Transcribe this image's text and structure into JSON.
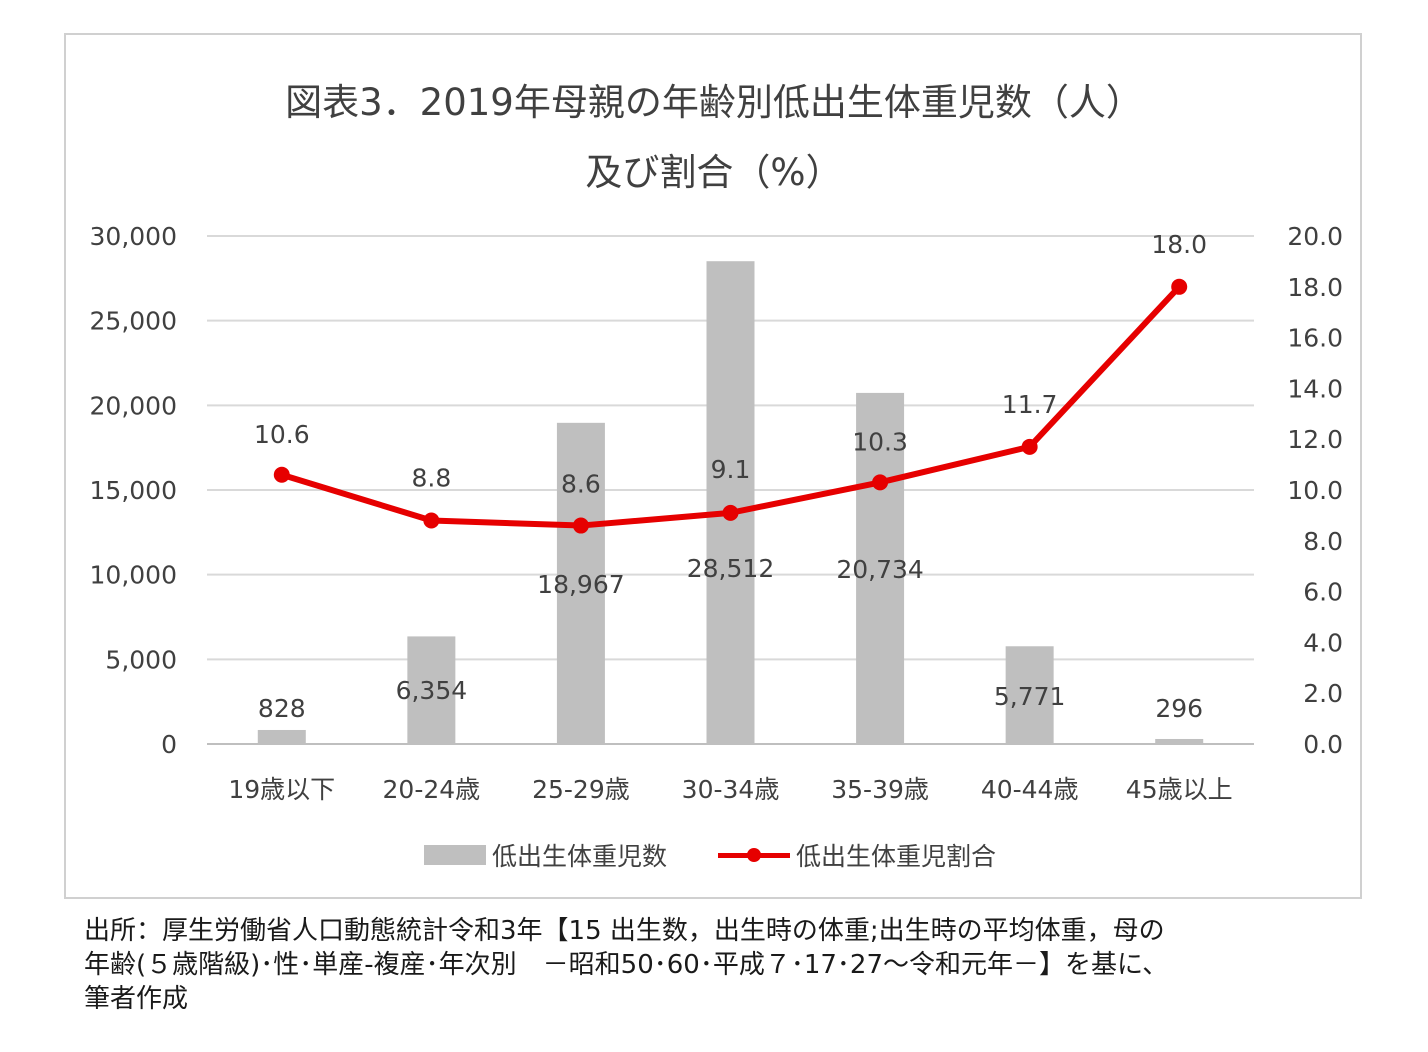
{
  "chart_data": {
    "type": "bar+line",
    "title_line1": "図表3．2019年母親の年齢別低出生体重児数（人）",
    "title_line2": "及び割合（%）",
    "categories": [
      "19歳以下",
      "20-24歳",
      "25-29歳",
      "30-34歳",
      "35-39歳",
      "40-44歳",
      "45歳以上"
    ],
    "series": [
      {
        "name": "低出生体重児数",
        "type": "bar",
        "axis": "left",
        "color": "#bfbfbf",
        "values": [
          828,
          6354,
          18967,
          28512,
          20734,
          5771,
          296
        ],
        "labels": [
          "828",
          "6,354",
          "18,967",
          "28,512",
          "20,734",
          "5,771",
          "296"
        ]
      },
      {
        "name": "低出生体重児割合",
        "type": "line",
        "axis": "right",
        "color": "#e60000",
        "values": [
          10.6,
          8.8,
          8.6,
          9.1,
          10.3,
          11.7,
          18.0
        ],
        "labels": [
          "10.6",
          "8.8",
          "8.6",
          "9.1",
          "10.3",
          "11.7",
          "18.0"
        ]
      }
    ],
    "left_axis": {
      "min": 0,
      "max": 30000,
      "step": 5000,
      "ticks": [
        "0",
        "5,000",
        "10,000",
        "15,000",
        "20,000",
        "25,000",
        "30,000"
      ]
    },
    "right_axis": {
      "min": 0,
      "max": 20,
      "step": 2,
      "ticks": [
        "0.0",
        "2.0",
        "4.0",
        "6.0",
        "8.0",
        "10.0",
        "12.0",
        "14.0",
        "16.0",
        "18.0",
        "20.0"
      ]
    },
    "grid": true,
    "legend": "bottom-center"
  },
  "source_note": {
    "line1": "出所：厚生労働省人口動態統計令和3年【15 出生数，出生時の体重;出生時の平均体重，母の",
    "line2": "年齢(５歳階級)･性･単産-複産･年次別　－昭和50･60･平成７･17･27～令和元年－】を基に、",
    "line3": "筆者作成"
  }
}
